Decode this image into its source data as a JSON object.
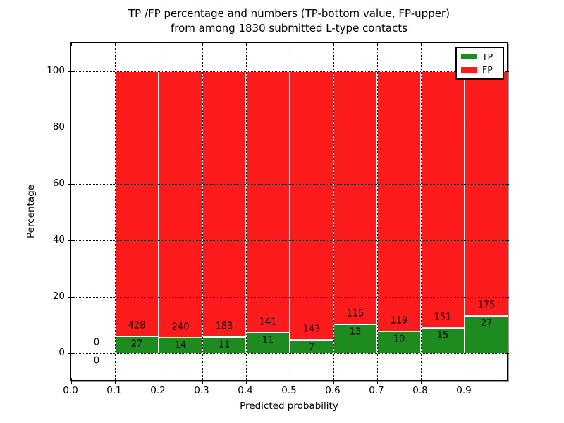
{
  "title": {
    "line1": "TP /FP percentage and numbers (TP-bottom value, FP-upper)",
    "line2": "from among 1830 submitted L-type contacts"
  },
  "axes": {
    "xlabel": "Predicted probability",
    "ylabel": "Percentage",
    "x_tick_labels": [
      "0.0",
      "0.1",
      "0.2",
      "0.3",
      "0.4",
      "0.5",
      "0.6",
      "0.7",
      "0.8",
      "0.9"
    ],
    "x_tick_values": [
      0.0,
      0.1,
      0.2,
      0.3,
      0.4,
      0.5,
      0.6,
      0.7,
      0.8,
      0.9
    ],
    "y_tick_labels": [
      "0",
      "20",
      "40",
      "60",
      "80",
      "100"
    ],
    "y_tick_values": [
      0,
      20,
      40,
      60,
      80,
      100
    ],
    "xlim": [
      0.0,
      1.0
    ],
    "ylim": [
      -10,
      110
    ],
    "grid": "dotted"
  },
  "legend": {
    "position": "upper-right",
    "items": [
      {
        "label": "TP",
        "color": "#1e8b1e"
      },
      {
        "label": "FP",
        "color": "#fe1b1b"
      }
    ]
  },
  "colors": {
    "tp_green": "#1e8b1e",
    "fp_red": "#fe1b1b",
    "bar_edge": "#ffffff",
    "grid": "#000000",
    "frame_shadow": "#999999"
  },
  "chart_data": {
    "type": "bar",
    "stacked": true,
    "normalized_to_percent": true,
    "total_contacts": 1830,
    "bin_width": 0.1,
    "bin_starts": [
      0.0,
      0.1,
      0.2,
      0.3,
      0.4,
      0.5,
      0.6,
      0.7,
      0.8,
      0.9
    ],
    "series": [
      {
        "name": "TP",
        "counts": [
          0,
          27,
          14,
          11,
          11,
          7,
          13,
          10,
          15,
          27
        ]
      },
      {
        "name": "FP",
        "counts": [
          0,
          428,
          240,
          183,
          141,
          143,
          115,
          119,
          151,
          175
        ]
      }
    ],
    "tp_percent_of_bin": [
      0,
      5.93,
      5.51,
      5.67,
      7.24,
      4.67,
      10.16,
      7.75,
      9.04,
      13.37
    ],
    "bar_total_percent": 100
  }
}
